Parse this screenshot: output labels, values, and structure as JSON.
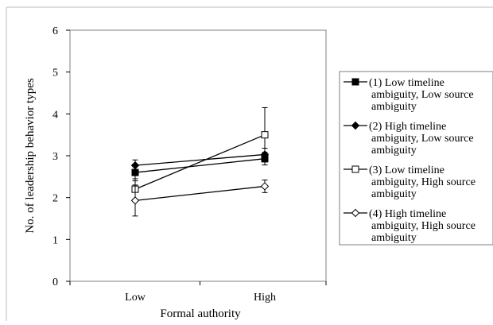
{
  "chart_data": {
    "type": "line",
    "categories": [
      "Low",
      "High"
    ],
    "xlabel": "Formal authority",
    "ylabel": "No. of leadership behavior types",
    "ylim": [
      0,
      6
    ],
    "yticks": [
      "0",
      "1",
      "2",
      "3",
      "4",
      "5",
      "6"
    ],
    "grid": false,
    "legend_position": "right",
    "series": [
      {
        "name": "(1) Low timeline ambiguity, Low source ambiguity",
        "name_lines": [
          "(1) Low timeline",
          "ambiguity, Low source",
          "ambiguity"
        ],
        "marker": "filled-square",
        "values": [
          2.6,
          2.93
        ],
        "errors": [
          0.2,
          0.15
        ]
      },
      {
        "name": "(2) High timeline ambiguity, Low source ambiguity",
        "name_lines": [
          "(2) High timeline",
          "ambiguity, Low source",
          "ambiguity"
        ],
        "marker": "filled-diamond",
        "values": [
          2.77,
          3.03
        ],
        "errors": [
          0.13,
          0.15
        ]
      },
      {
        "name": "(3) Low timeline ambiguity, High source ambiguity",
        "name_lines": [
          "(3) Low timeline",
          "ambiguity, High source",
          "ambiguity"
        ],
        "marker": "open-square",
        "values": [
          2.2,
          3.5
        ],
        "errors": [
          0.25,
          0.65
        ]
      },
      {
        "name": "(4) High timeline ambiguity, High source ambiguity",
        "name_lines": [
          "(4) High timeline",
          "ambiguity, High source",
          "ambiguity"
        ],
        "marker": "open-diamond",
        "values": [
          1.93,
          2.27
        ],
        "errors": [
          0.37,
          0.15
        ]
      }
    ]
  }
}
